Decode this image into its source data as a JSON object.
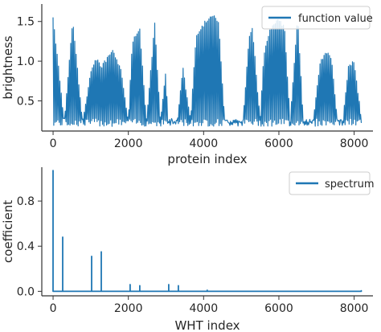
{
  "chart_data": [
    {
      "type": "line",
      "xlabel": "protein index",
      "ylabel": "brightness",
      "xlim": [
        -300,
        8500
      ],
      "ylim": [
        0.12,
        1.72
      ],
      "xticks": [
        "0",
        "2000",
        "4000",
        "6000",
        "8000"
      ],
      "yticks": [
        "0.5",
        "1.0",
        "1.5"
      ],
      "legend": {
        "label": "function value",
        "position": "top-right"
      },
      "color": "#1f77b4",
      "series": [
        {
          "name": "function value",
          "x": [
            0,
            300,
            520,
            780,
            1000,
            1150,
            1280,
            1600,
            1800,
            2000,
            2100,
            2300,
            2480,
            2700,
            2850,
            3000,
            3050,
            3300,
            3450,
            3650,
            3800,
            3950,
            4100,
            4250,
            4400,
            4560,
            4800,
            5050,
            5200,
            5300,
            5500,
            5600,
            5750,
            5950,
            6150,
            6300,
            6500,
            6650,
            6900,
            7100,
            7250,
            7400,
            7550,
            7700,
            7850,
            8000,
            8191
          ],
          "y": [
            1.58,
            0.25,
            1.55,
            0.26,
            0.88,
            1.05,
            0.95,
            1.15,
            0.9,
            0.28,
            1.25,
            1.45,
            0.26,
            1.5,
            0.27,
            0.9,
            0.28,
            0.26,
            0.95,
            0.27,
            1.32,
            1.45,
            1.55,
            1.6,
            1.5,
            0.27,
            0.26,
            0.28,
            1.3,
            1.45,
            0.27,
            1.1,
            1.4,
            1.55,
            1.45,
            0.28,
            1.58,
            0.27,
            0.26,
            1.0,
            1.15,
            1.05,
            0.27,
            0.26,
            0.98,
            1.0,
            0.3
          ]
        }
      ]
    },
    {
      "type": "line",
      "xlabel": "WHT index",
      "ylabel": "coefficient",
      "xlim": [
        -300,
        8500
      ],
      "ylim": [
        -0.04,
        1.1
      ],
      "xticks": [
        "0",
        "2000",
        "4000",
        "6000",
        "8000"
      ],
      "yticks": [
        "0.0",
        "0.4",
        "0.8"
      ],
      "legend": {
        "label": "spectrum",
        "position": "top-right"
      },
      "color": "#1f77b4",
      "series": [
        {
          "name": "spectrum",
          "x": [
            0,
            256,
            1024,
            1280,
            2048,
            2304,
            3072,
            3328,
            4096,
            8191
          ],
          "y": [
            1.07,
            0.48,
            0.31,
            0.35,
            0.06,
            0.05,
            0.06,
            0.05,
            0.01,
            0.005
          ]
        }
      ]
    }
  ]
}
